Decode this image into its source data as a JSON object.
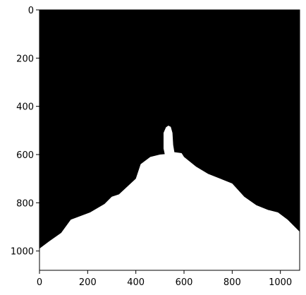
{
  "chart_data": {
    "type": "image",
    "title": "",
    "xlabel": "",
    "ylabel": "",
    "xlim": [
      0,
      1080
    ],
    "ylim": [
      1080,
      0
    ],
    "grid": false,
    "x_ticks": [
      0,
      200,
      400,
      600,
      800,
      1000
    ],
    "x_tick_labels": [
      "0",
      "200",
      "400",
      "600",
      "800",
      "1000"
    ],
    "y_ticks": [
      0,
      200,
      400,
      600,
      800,
      1000
    ],
    "y_tick_labels": [
      "0",
      "200",
      "400",
      "600",
      "800",
      "1000"
    ],
    "background_color": "#000000",
    "mask_color": "#ffffff",
    "mask_outline": [
      [
        0,
        990
      ],
      [
        40,
        960
      ],
      [
        90,
        925
      ],
      [
        130,
        870
      ],
      [
        210,
        840
      ],
      [
        270,
        805
      ],
      [
        300,
        775
      ],
      [
        330,
        765
      ],
      [
        400,
        700
      ],
      [
        420,
        640
      ],
      [
        440,
        625
      ],
      [
        460,
        610
      ],
      [
        500,
        600
      ],
      [
        520,
        598
      ],
      [
        515,
        575
      ],
      [
        515,
        510
      ],
      [
        525,
        487
      ],
      [
        535,
        480
      ],
      [
        545,
        485
      ],
      [
        552,
        510
      ],
      [
        555,
        560
      ],
      [
        560,
        590
      ],
      [
        590,
        594
      ],
      [
        600,
        610
      ],
      [
        625,
        630
      ],
      [
        650,
        650
      ],
      [
        700,
        680
      ],
      [
        750,
        700
      ],
      [
        800,
        720
      ],
      [
        850,
        775
      ],
      [
        900,
        810
      ],
      [
        950,
        830
      ],
      [
        990,
        840
      ],
      [
        1030,
        870
      ],
      [
        1065,
        905
      ],
      [
        1080,
        920
      ],
      [
        1080,
        1080
      ],
      [
        0,
        1080
      ]
    ]
  }
}
